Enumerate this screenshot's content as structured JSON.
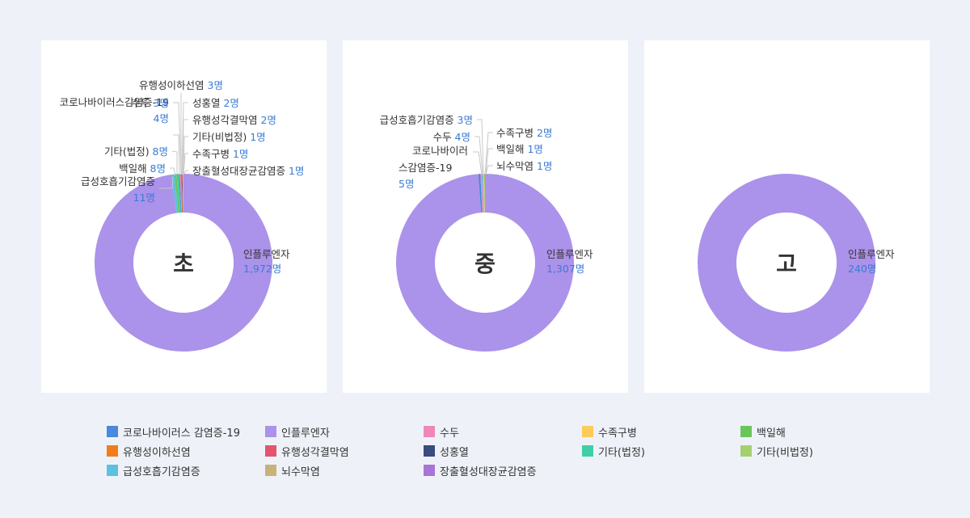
{
  "colors": {
    "covid": "#4a89dc",
    "influenza": "#ab92ea",
    "chickenpox": "#ef87b8",
    "hfmd": "#fdcb5a",
    "pertussis": "#6bc45c",
    "mumps": "#f27c1d",
    "meningitis": "#e5546d",
    "scarlet": "#3a4b7e",
    "other_legal": "#3fcfa6",
    "other_nonlegal": "#a4d16e",
    "acute_resp": "#5ac2e0",
    "encephalitis": "#c9b27a",
    "ehec": "#a874d6"
  },
  "chart_data": [
    {
      "type": "pie",
      "center_label": "초",
      "slices": [
        {
          "key": "influenza",
          "name": "인플루엔자",
          "value": 1972,
          "value_label": "1,972명"
        },
        {
          "key": "acute_resp",
          "name": "급성호흡기감염증",
          "value": 11,
          "value_label": "11명"
        },
        {
          "key": "pertussis",
          "name": "백일해",
          "value": 8,
          "value_label": "8명"
        },
        {
          "key": "other_legal",
          "name": "기타(법정)",
          "value": 8,
          "value_label": "8명"
        },
        {
          "key": "covid",
          "name": "코로나바이러스감염증-19",
          "value": 4,
          "value_label": "4명"
        },
        {
          "key": "chickenpox",
          "name": "수두",
          "value": 3,
          "value_label": "3명"
        },
        {
          "key": "mumps",
          "name": "유행성이하선염",
          "value": 3,
          "value_label": "3명"
        },
        {
          "key": "scarlet",
          "name": "성홍열",
          "value": 2,
          "value_label": "2명"
        },
        {
          "key": "meningitis",
          "name": "유행성각결막염",
          "value": 2,
          "value_label": "2명"
        },
        {
          "key": "other_nonlegal",
          "name": "기타(비법정)",
          "value": 1,
          "value_label": "1명"
        },
        {
          "key": "hfmd",
          "name": "수족구병",
          "value": 1,
          "value_label": "1명"
        },
        {
          "key": "ehec",
          "name": "장출혈성대장균감염증",
          "value": 1,
          "value_label": "1명"
        }
      ]
    },
    {
      "type": "pie",
      "center_label": "중",
      "slices": [
        {
          "key": "influenza",
          "name": "인플루엔자",
          "value": 1307,
          "value_label": "1,307명"
        },
        {
          "key": "covid",
          "name": "코로나바이러스감염증-19",
          "value": 5,
          "value_label": "5명"
        },
        {
          "key": "chickenpox",
          "name": "수두",
          "value": 4,
          "value_label": "4명"
        },
        {
          "key": "acute_resp",
          "name": "급성호흡기감염증",
          "value": 3,
          "value_label": "3명"
        },
        {
          "key": "hfmd",
          "name": "수족구병",
          "value": 2,
          "value_label": "2명"
        },
        {
          "key": "pertussis",
          "name": "백일해",
          "value": 1,
          "value_label": "1명"
        },
        {
          "key": "encephalitis",
          "name": "뇌수막염",
          "value": 1,
          "value_label": "1명"
        }
      ]
    },
    {
      "type": "pie",
      "center_label": "고",
      "slices": [
        {
          "key": "influenza",
          "name": "인플루엔자",
          "value": 240,
          "value_label": "240명"
        }
      ]
    }
  ],
  "legend": [
    {
      "key": "covid",
      "label": "코로나바이러스 감염증-19"
    },
    {
      "key": "influenza",
      "label": "인플루엔자"
    },
    {
      "key": "chickenpox",
      "label": "수두"
    },
    {
      "key": "hfmd",
      "label": "수족구병"
    },
    {
      "key": "pertussis",
      "label": "백일해"
    },
    {
      "key": "mumps",
      "label": "유행성이하선염"
    },
    {
      "key": "meningitis",
      "label": "유행성각결막염"
    },
    {
      "key": "scarlet",
      "label": "성홍열"
    },
    {
      "key": "other_legal",
      "label": "기타(법정)"
    },
    {
      "key": "other_nonlegal",
      "label": "기타(비법정)"
    },
    {
      "key": "acute_resp",
      "label": "급성호흡기감염증"
    },
    {
      "key": "encephalitis",
      "label": "뇌수막염"
    },
    {
      "key": "ehec",
      "label": "장출혈성대장균감염증"
    }
  ]
}
